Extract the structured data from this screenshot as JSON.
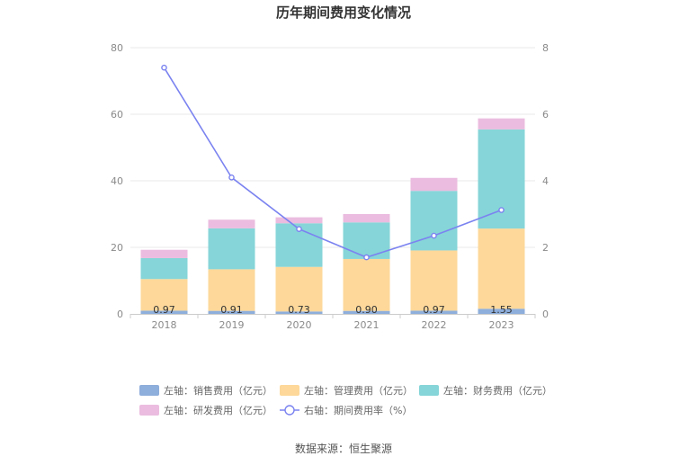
{
  "chart_data": {
    "type": "bar",
    "stacked": true,
    "title": "历年期间费用变化情况",
    "categories": [
      "2018",
      "2019",
      "2020",
      "2021",
      "2022",
      "2023"
    ],
    "y_left": {
      "min": 0,
      "max": 80,
      "ticks": [
        0,
        20,
        40,
        60,
        80
      ]
    },
    "y_right": {
      "min": 0,
      "max": 8,
      "ticks": [
        0,
        2,
        4,
        6,
        8
      ]
    },
    "grid": true,
    "series": [
      {
        "name": "左轴：销售费用（亿元）",
        "axis": "left",
        "type": "bar",
        "color": "#8eaedb",
        "values": [
          0.97,
          0.91,
          0.73,
          0.9,
          0.97,
          1.55
        ],
        "labels": [
          "0.97",
          "0.91",
          "0.73",
          "0.90",
          "0.97",
          "1.55"
        ]
      },
      {
        "name": "左轴：管理费用（亿元）",
        "axis": "left",
        "type": "bar",
        "color": "#fdd89a",
        "values": [
          9.5,
          12.5,
          13.4,
          15.6,
          18.1,
          24.1
        ]
      },
      {
        "name": "左轴：财务费用（亿元）",
        "axis": "left",
        "type": "bar",
        "color": "#86d5d8",
        "values": [
          6.3,
          12.3,
          13.1,
          11.0,
          17.9,
          29.8
        ]
      },
      {
        "name": "左轴：研发费用（亿元）",
        "axis": "left",
        "type": "bar",
        "color": "#ebbcdf",
        "values": [
          2.5,
          2.6,
          1.8,
          2.5,
          3.9,
          3.3
        ]
      },
      {
        "name": "右轴：期间费用率（%）",
        "axis": "right",
        "type": "line",
        "color": "#7b83f0",
        "values": [
          7.4,
          4.1,
          2.55,
          1.7,
          2.35,
          3.12
        ]
      }
    ],
    "legend_position": "bottom"
  },
  "source": "数据来源：恒生聚源"
}
